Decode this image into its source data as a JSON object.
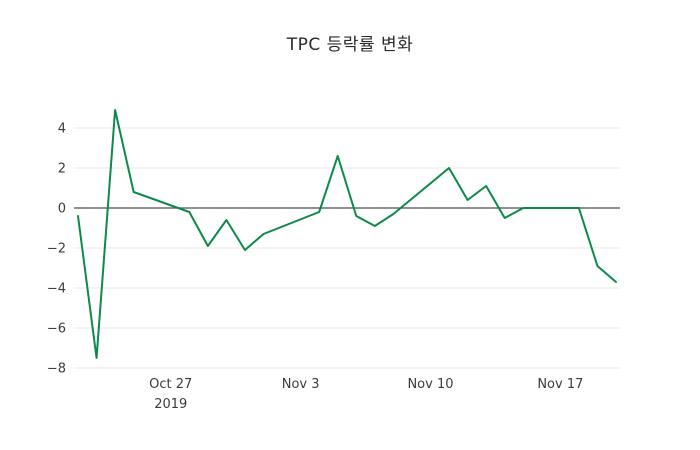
{
  "title": "TPC 등락률 변화",
  "chart_data": {
    "type": "line",
    "title": "TPC 등락률 변화",
    "series_name": "TPC 등락률",
    "x": [
      "2019-10-22",
      "2019-10-23",
      "2019-10-24",
      "2019-10-25",
      "2019-10-28",
      "2019-10-29",
      "2019-10-30",
      "2019-10-31",
      "2019-11-01",
      "2019-11-04",
      "2019-11-05",
      "2019-11-06",
      "2019-11-07",
      "2019-11-08",
      "2019-11-11",
      "2019-11-12",
      "2019-11-13",
      "2019-11-14",
      "2019-11-15",
      "2019-11-18",
      "2019-11-19",
      "2019-11-20"
    ],
    "values": [
      -0.4,
      -7.5,
      4.9,
      0.8,
      -0.2,
      -1.9,
      -0.6,
      -2.1,
      -1.3,
      -0.2,
      2.6,
      -0.4,
      -0.9,
      -0.3,
      2.0,
      0.4,
      1.1,
      -0.5,
      0.0,
      0.0,
      -2.9,
      -3.7
    ],
    "ylim": [
      -8.5,
      5.3
    ],
    "yticks": [
      -8,
      -6,
      -4,
      -2,
      0,
      2,
      4
    ],
    "xticks": [
      {
        "date": "2019-10-27",
        "label": "Oct 27",
        "sublabel": "2019"
      },
      {
        "date": "2019-11-03",
        "label": "Nov 3",
        "sublabel": ""
      },
      {
        "date": "2019-11-10",
        "label": "Nov 10",
        "sublabel": ""
      },
      {
        "date": "2019-11-17",
        "label": "Nov 17",
        "sublabel": ""
      }
    ],
    "grid": true,
    "legend": "none",
    "zero_line": true,
    "line_color": "#0c8a4a",
    "grid_color": "#e8e8e8",
    "zero_line_color": "#4d4d4d",
    "xlabel": "",
    "ylabel": ""
  }
}
